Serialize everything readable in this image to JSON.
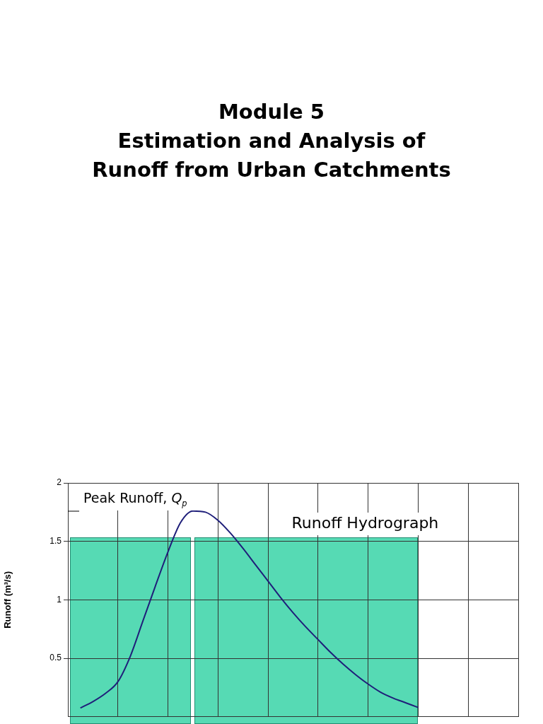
{
  "chart_data": {
    "type": "line",
    "title": "Module 5\nEstimation and Analysis of\nRunoff from Urban Catchments",
    "ylabel": "Runoff (m³/s)",
    "annotations": [
      "Peak Runoff, Q$_{p}$",
      "Runoff Hydrograph"
    ],
    "categories": [
      null,
      null,
      null,
      null,
      null,
      null,
      null,
      null,
      null,
      null,
      null,
      null,
      null,
      null,
      null,
      null,
      null,
      null,
      null,
      null,
      null,
      null,
      null,
      null,
      null,
      null,
      null,
      null,
      null,
      null,
      null,
      null,
      null,
      null,
      null,
      null,
      null
    ],
    "series": [
      {
        "color": "#1f1f7a",
        "values": [
          null,
          0.075,
          0.13,
          0.2,
          0.3,
          0.52,
          0.82,
          1.12,
          1.41,
          1.66,
          1.76,
          1.75,
          1.68,
          1.57,
          1.44,
          1.3,
          1.16,
          1.02,
          0.89,
          0.77,
          0.66,
          0.55,
          0.45,
          0.36,
          0.28,
          0.21,
          0.16,
          0.12,
          0.08,
          null,
          null,
          null,
          null,
          null,
          null,
          null,
          null
        ]
      }
    ],
    "ylim": [
      0,
      2
    ],
    "yticks": [
      0.5,
      1,
      1.5,
      2
    ],
    "grid": true,
    "marker": "none",
    "tick_labels": "y"
  }
}
